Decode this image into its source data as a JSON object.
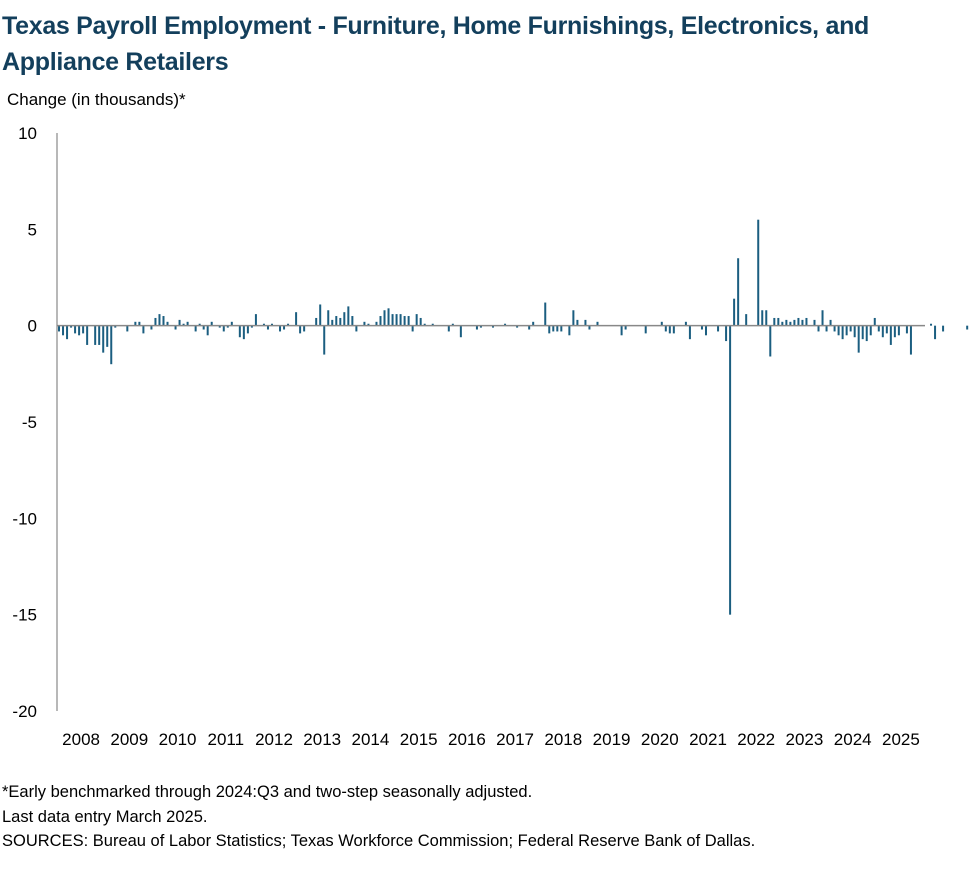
{
  "title": "Texas Payroll Employment - Furniture, Home Furnishings, Electronics, and Appliance Retailers",
  "notes": [
    "*Early benchmarked through 2024:Q3 and two-step seasonally adjusted.",
    "Last data entry March 2025.",
    "SOURCES: Bureau of Labor Statistics; Texas Workforce Commission; Federal Reserve Bank of Dallas."
  ],
  "colors": {
    "bar": "#1b5e80",
    "axis": "#888888",
    "title": "#133f5c"
  },
  "chart_data": {
    "type": "bar",
    "ylabel": "Change (in thousands)*",
    "ylim": [
      -20,
      10
    ],
    "yticks": [
      10,
      5,
      0,
      -5,
      -10,
      -15,
      -20
    ],
    "xlabel": "",
    "xticks": [
      "2008",
      "2009",
      "2010",
      "2011",
      "2012",
      "2013",
      "2014",
      "2015",
      "2016",
      "2017",
      "2018",
      "2019",
      "2020",
      "2021",
      "2022",
      "2023",
      "2024",
      "2025"
    ],
    "start": "2008-01",
    "end": "2025-03",
    "grid": false,
    "legend": "none",
    "series": [
      {
        "values": [
          -0.3,
          -0.5,
          -0.7,
          -0.1,
          -0.4,
          -0.5,
          -0.4,
          -1.0,
          0.0,
          -1.0,
          -1.0,
          -1.4,
          -1.1,
          -2.0,
          -0.1,
          0.0,
          0.0,
          -0.3,
          0.0,
          0.2,
          0.2,
          -0.4,
          0.0,
          -0.2,
          0.4,
          0.6,
          0.5,
          0.2,
          0.0,
          -0.2,
          0.3,
          0.1,
          0.2,
          0.0,
          -0.3,
          0.1,
          -0.2,
          -0.5,
          0.2,
          0.0,
          -0.1,
          -0.3,
          -0.1,
          0.2,
          0.0,
          -0.6,
          -0.7,
          -0.4,
          -0.1,
          0.6,
          0.0,
          0.1,
          -0.2,
          0.1,
          0.0,
          -0.3,
          -0.2,
          0.1,
          0.0,
          0.7,
          -0.4,
          -0.3,
          0.0,
          0.0,
          0.4,
          1.1,
          -1.5,
          0.8,
          0.3,
          0.5,
          0.4,
          0.7,
          1.0,
          0.5,
          -0.3,
          0.0,
          0.2,
          0.1,
          0.0,
          0.2,
          0.5,
          0.8,
          0.9,
          0.6,
          0.6,
          0.6,
          0.5,
          0.5,
          -0.3,
          0.6,
          0.4,
          0.1,
          0.0,
          0.1,
          0.0,
          0.0,
          0.0,
          -0.3,
          0.1,
          0.0,
          -0.6,
          0.0,
          0.0,
          0.0,
          -0.2,
          -0.1,
          0.0,
          0.0,
          -0.1,
          0.0,
          0.0,
          0.1,
          0.0,
          0.0,
          -0.1,
          0.0,
          0.0,
          -0.2,
          0.2,
          0.0,
          0.0,
          1.2,
          -0.4,
          -0.3,
          -0.3,
          -0.3,
          0.0,
          -0.5,
          0.8,
          0.3,
          0.0,
          0.3,
          -0.2,
          0.0,
          0.2,
          0.0,
          0.0,
          0.0,
          0.0,
          0.0,
          -0.5,
          -0.2,
          0.0,
          0.0,
          0.0,
          0.0,
          -0.4,
          0.0,
          0.0,
          0.0,
          0.2,
          -0.3,
          -0.4,
          -0.4,
          0.0,
          0.0,
          0.2,
          -0.7,
          0.0,
          0.0,
          -0.2,
          -0.5,
          0.0,
          0.0,
          -0.3,
          0.0,
          -0.8,
          -15.0,
          1.4,
          3.5,
          0.0,
          0.6,
          0.0,
          0.0,
          5.5,
          0.8,
          0.8,
          -1.6,
          0.4,
          0.4,
          0.2,
          0.3,
          0.2,
          0.3,
          0.4,
          0.3,
          0.4,
          0.0,
          0.3,
          -0.3,
          0.8,
          -0.3,
          0.3,
          -0.3,
          -0.5,
          -0.7,
          -0.5,
          -0.3,
          -0.6,
          -1.4,
          -0.7,
          -0.8,
          -0.5,
          0.4,
          -0.3,
          -0.6,
          -0.4,
          -1.0,
          -0.6,
          -0.5,
          0.0,
          -0.4,
          -1.5,
          0.0,
          0.0,
          0.0,
          0.0,
          0.1,
          -0.7,
          0.0,
          -0.3,
          0.0,
          0.0,
          0.0,
          0.0,
          0.0,
          -0.2,
          0.0,
          0.0,
          0.0,
          0.2,
          0.0,
          0.1,
          -0.4,
          0.5,
          -1.2,
          0.0,
          -0.3,
          0.0,
          0.0,
          0.0,
          0.0,
          0.0,
          0.0,
          0.0,
          0.0,
          0.0
        ]
      }
    ]
  }
}
